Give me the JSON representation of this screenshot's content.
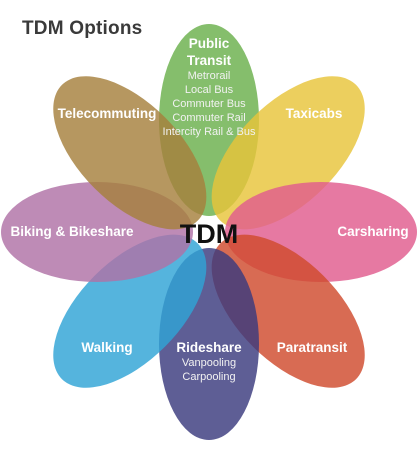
{
  "title": "TDM Options",
  "center_label": "TDM",
  "petals": [
    {
      "key": "transit",
      "color": "#6ab04c",
      "lines": [
        "Public",
        "Transit"
      ],
      "sub": [
        "Metrorail",
        "Local Bus",
        "Commuter Bus",
        "Commuter Rail",
        "Intercity Rail & Bus"
      ]
    },
    {
      "key": "taxicabs",
      "color": "#e8c43a",
      "lines": [
        "Taxicabs"
      ],
      "sub": []
    },
    {
      "key": "carsharing",
      "color": "#e15b8d",
      "lines": [
        "Carsharing"
      ],
      "sub": []
    },
    {
      "key": "paratransit",
      "color": "#cf4a2d",
      "lines": [
        "Paratransit"
      ],
      "sub": []
    },
    {
      "key": "rideshare",
      "color": "#3b3a7e",
      "lines": [
        "Rideshare"
      ],
      "sub": [
        "Vanpooling",
        "Carpooling"
      ]
    },
    {
      "key": "walking",
      "color": "#2fa3d6",
      "lines": [
        "Walking"
      ],
      "sub": []
    },
    {
      "key": "biking",
      "color": "#b072a6",
      "lines": [
        "Biking & Bikeshare"
      ],
      "sub": []
    },
    {
      "key": "telecommuting",
      "color": "#a6803d",
      "lines": [
        "Telecommuting"
      ],
      "sub": []
    }
  ]
}
